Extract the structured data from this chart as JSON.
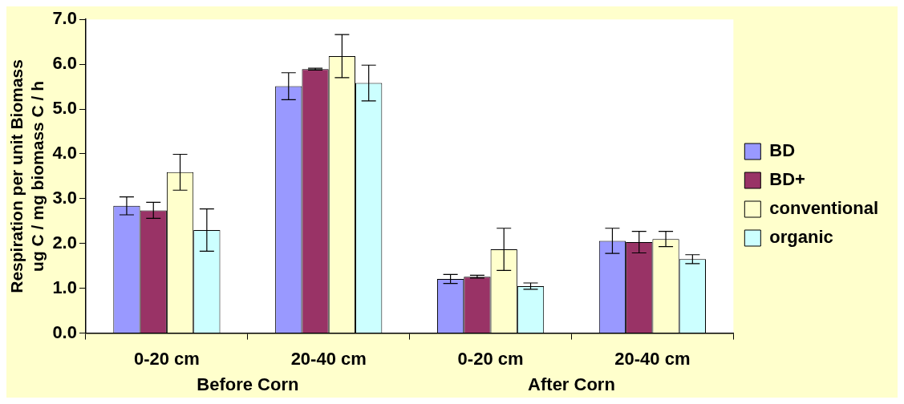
{
  "chart_data": {
    "type": "bar",
    "ylabel": "Respiration per unit Biomass\nug C / mg biomass C / h",
    "categories": [
      "0-20 cm",
      "20-40 cm",
      "0-20 cm",
      "20-40 cm"
    ],
    "annotations": [
      "Before Corn",
      "After Corn"
    ],
    "ylim": [
      0,
      7
    ],
    "yticks": [
      {
        "value": 0,
        "label": "0.0"
      },
      {
        "value": 1,
        "label": "1.0"
      },
      {
        "value": 2,
        "label": "2.0"
      },
      {
        "value": 3,
        "label": "3.0"
      },
      {
        "value": 4,
        "label": "4.0"
      },
      {
        "value": 5,
        "label": "5.0"
      },
      {
        "value": 6,
        "label": "6.0"
      },
      {
        "value": 7,
        "label": "7.0"
      }
    ],
    "grid": false,
    "legend": "right",
    "series": [
      {
        "name": "BD",
        "color": "#9999ff",
        "values": [
          2.84,
          5.51,
          1.21,
          2.06
        ],
        "errors": [
          0.2,
          0.3,
          0.1,
          0.28
        ]
      },
      {
        "name": "BD+",
        "color": "#993366",
        "values": [
          2.74,
          5.89,
          1.26,
          2.03
        ],
        "errors": [
          0.18,
          0.02,
          0.03,
          0.24
        ]
      },
      {
        "name": "conventional",
        "color": "#ffffcc",
        "values": [
          3.59,
          6.18,
          1.87,
          2.1
        ],
        "errors": [
          0.4,
          0.48,
          0.47,
          0.17
        ]
      },
      {
        "name": "organic",
        "color": "#ccffff",
        "values": [
          2.3,
          5.58,
          1.05,
          1.65
        ],
        "errors": [
          0.47,
          0.4,
          0.07,
          0.1
        ]
      }
    ]
  }
}
